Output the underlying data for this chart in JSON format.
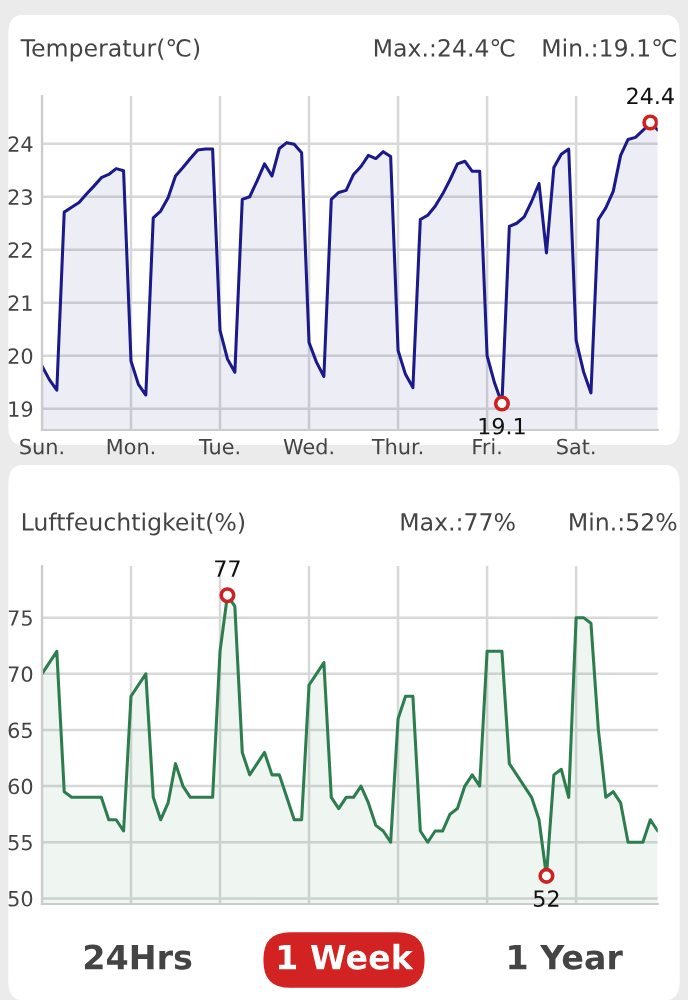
{
  "chart_data": [
    {
      "type": "area",
      "title": "Temperatur(℃)",
      "annotations": [
        "Max.:24.4℃",
        "Min.:19.1℃",
        {
          "text": "24.4",
          "y": 24.4
        },
        {
          "text": "19.1",
          "y": 19.1
        }
      ],
      "categories": [
        "Sun.",
        null,
        null,
        null,
        null,
        null,
        null,
        null,
        null,
        null,
        null,
        null,
        "Mon.",
        null,
        null,
        null,
        null,
        null,
        null,
        null,
        null,
        null,
        null,
        null,
        "Tue.",
        null,
        null,
        null,
        null,
        null,
        null,
        null,
        null,
        null,
        null,
        null,
        "Wed.",
        null,
        null,
        null,
        null,
        null,
        null,
        null,
        null,
        null,
        null,
        null,
        "Thur.",
        null,
        null,
        null,
        null,
        null,
        null,
        null,
        null,
        null,
        null,
        null,
        "Fri.",
        null,
        null,
        null,
        null,
        null,
        null,
        null,
        null,
        null,
        null,
        null,
        "Sat.",
        null,
        null,
        null,
        null,
        null,
        null,
        null,
        null,
        null,
        null,
        null
      ],
      "ylim": [
        18.6,
        24.9
      ],
      "yticks": [
        19,
        20,
        21,
        22,
        23,
        24
      ],
      "grid": true,
      "series": [
        {
          "color": "#1b1a8a",
          "values": [
            19.81,
            19.55,
            19.35,
            22.71,
            22.8,
            22.89,
            23.05,
            23.2,
            23.36,
            23.42,
            23.53,
            23.49,
            19.9,
            19.46,
            19.26,
            22.6,
            22.73,
            22.98,
            23.39,
            23.55,
            23.72,
            23.88,
            23.9,
            23.9,
            20.48,
            19.94,
            19.69,
            22.95,
            23.0,
            23.3,
            23.62,
            23.39,
            23.91,
            24.02,
            23.99,
            23.83,
            20.25,
            19.88,
            19.61,
            22.95,
            23.08,
            23.12,
            23.42,
            23.57,
            23.78,
            23.72,
            23.85,
            23.76,
            20.1,
            19.65,
            19.4,
            22.57,
            22.65,
            22.82,
            23.05,
            23.32,
            23.62,
            23.67,
            23.48,
            23.48,
            20.0,
            19.49,
            19.1,
            22.44,
            22.5,
            22.62,
            22.91,
            23.25,
            21.94,
            23.55,
            23.8,
            23.9,
            20.29,
            19.7,
            19.3,
            22.57,
            22.79,
            23.1,
            23.78,
            24.08,
            24.12,
            24.25,
            24.4,
            24.26
          ]
        }
      ]
    },
    {
      "type": "area",
      "title": "Luftfeuchtigkeit(%)",
      "annotations": [
        "Max.:77%",
        "Min.:52%",
        {
          "text": "77",
          "y": 77
        },
        {
          "text": "52",
          "y": 52
        }
      ],
      "categories": [
        null,
        null,
        null,
        null,
        null,
        null,
        null,
        null,
        null,
        null,
        null,
        null,
        null,
        null,
        null,
        null,
        null,
        null,
        null,
        null,
        null,
        null,
        null,
        null,
        null,
        null,
        null,
        null,
        null,
        null,
        null,
        null,
        null,
        null,
        null,
        null,
        null,
        null,
        null,
        null,
        null,
        null,
        null,
        null,
        null,
        null,
        null,
        null,
        null,
        null,
        null,
        null,
        null,
        null,
        null,
        null,
        null,
        null,
        null,
        null,
        null,
        null,
        null,
        null,
        null,
        null,
        null,
        null,
        null,
        null,
        null,
        null,
        null,
        null,
        null,
        null,
        null,
        null,
        null,
        null,
        null,
        null,
        null,
        null
      ],
      "ylim": [
        49.5,
        79.6
      ],
      "yticks": [
        50,
        55,
        60,
        65,
        70,
        75
      ],
      "grid": true,
      "tick_labels": "y",
      "series": [
        {
          "color": "#2e7d4f",
          "values": [
            70,
            71,
            72,
            59.5,
            59,
            59,
            59,
            59,
            59,
            57,
            57,
            56,
            68,
            69,
            70,
            59,
            57,
            58.5,
            62,
            60,
            59,
            59,
            59,
            59,
            72,
            77,
            76,
            63,
            61,
            62,
            63,
            61,
            61,
            59,
            57,
            57,
            69,
            70,
            71,
            59,
            58,
            59,
            59,
            60,
            58.5,
            56.5,
            56,
            55,
            66,
            68,
            68,
            56,
            55,
            56,
            56,
            57.5,
            58,
            60,
            61,
            60,
            72,
            72,
            72,
            62,
            61,
            60,
            59,
            57,
            52,
            61,
            61.5,
            59,
            75,
            75,
            74.5,
            65,
            59,
            59.5,
            58.5,
            55,
            55,
            55,
            57,
            56
          ]
        }
      ]
    },
    {
      "type": "other",
      "annotations": [
        "24Hrs",
        "1 Week",
        "1 Year"
      ]
    }
  ]
}
